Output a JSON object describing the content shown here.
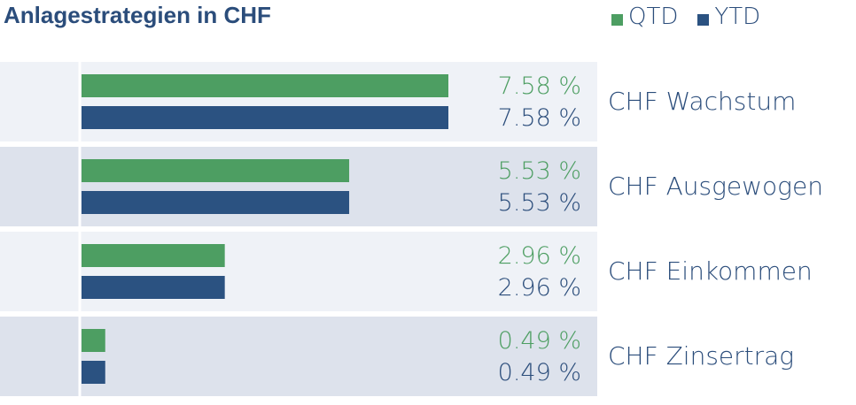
{
  "title": "Anlagestrategien in CHF",
  "legend": [
    {
      "label": "QTD",
      "color": "#4d9e62"
    },
    {
      "label": "YTD",
      "color": "#2b5281"
    }
  ],
  "chart_data": {
    "type": "bar",
    "orientation": "horizontal",
    "title": "Anlagestrategien in CHF",
    "categories": [
      "CHF Wachstum",
      "CHF Ausgewogen",
      "CHF Einkommen",
      "CHF Zinsertrag"
    ],
    "series": [
      {
        "name": "QTD",
        "values": [
          7.58,
          5.53,
          2.96,
          0.49
        ],
        "color": "#4d9e62"
      },
      {
        "name": "YTD",
        "values": [
          7.58,
          5.53,
          2.96,
          0.49
        ],
        "color": "#2b5281"
      }
    ],
    "value_labels": {
      "QTD": [
        "7.58 %",
        "5.53 %",
        "2.96 %",
        "0.49 %"
      ],
      "YTD": [
        "7.58 %",
        "5.53 %",
        "2.96 %",
        "0.49 %"
      ]
    },
    "xlim": [
      0,
      7.58
    ],
    "grid": false,
    "legend_position": "top-right"
  }
}
